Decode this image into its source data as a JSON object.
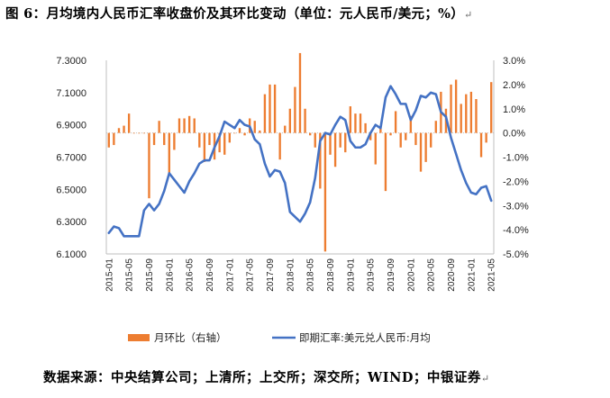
{
  "title": "图 6：月均境内人民币汇率收盘价及其环比变动（单位：元人民币/美元；%）",
  "return_mark": "↵",
  "source": "数据来源：中央结算公司；上清所；上交所；深交所；WIND；中银证券",
  "colors": {
    "bar": "#ED7D31",
    "line": "#4472C4",
    "axis": "#BFBFBF"
  },
  "chart_data": {
    "type": "bar+line",
    "title": "",
    "categories": [
      "2015-01",
      "2015-02",
      "2015-03",
      "2015-04",
      "2015-05",
      "2015-06",
      "2015-07",
      "2015-08",
      "2015-09",
      "2015-10",
      "2015-11",
      "2015-12",
      "2016-01",
      "2016-02",
      "2016-03",
      "2016-04",
      "2016-05",
      "2016-06",
      "2016-07",
      "2016-08",
      "2016-09",
      "2016-10",
      "2016-11",
      "2016-12",
      "2017-01",
      "2017-02",
      "2017-03",
      "2017-04",
      "2017-05",
      "2017-06",
      "2017-07",
      "2017-08",
      "2017-09",
      "2017-10",
      "2017-11",
      "2017-12",
      "2018-01",
      "2018-02",
      "2018-03",
      "2018-04",
      "2018-05",
      "2018-06",
      "2018-07",
      "2018-08",
      "2018-09",
      "2018-10",
      "2018-11",
      "2018-12",
      "2019-01",
      "2019-02",
      "2019-03",
      "2019-04",
      "2019-05",
      "2019-06",
      "2019-07",
      "2019-08",
      "2019-09",
      "2019-10",
      "2019-11",
      "2019-12",
      "2020-01",
      "2020-02",
      "2020-03",
      "2020-04",
      "2020-05",
      "2020-06",
      "2020-07",
      "2020-08",
      "2020-09",
      "2020-10",
      "2020-11",
      "2020-12",
      "2021-01",
      "2021-02",
      "2021-03",
      "2021-04",
      "2021-05"
    ],
    "x_tick_labels": [
      "2015-01",
      "2015-05",
      "2015-09",
      "2016-01",
      "2016-05",
      "2016-09",
      "2017-01",
      "2017-05",
      "2017-09",
      "2018-01",
      "2018-05",
      "2018-09",
      "2019-01",
      "2019-05",
      "2019-09",
      "2020-01",
      "2020-05",
      "2020-09",
      "2021-01",
      "2021-05"
    ],
    "series": [
      {
        "name": "月环比（右轴）",
        "type": "bar",
        "axis": "right",
        "values": [
          -0.6,
          -0.5,
          0.2,
          0.3,
          0.8,
          0.0,
          0.0,
          0.0,
          -2.7,
          -0.5,
          0.5,
          -0.5,
          -1.7,
          -0.7,
          0.6,
          0.6,
          0.7,
          0.6,
          -0.6,
          -1.2,
          -0.5,
          -1.1,
          -0.8,
          -0.9,
          -0.4,
          0.0,
          0.2,
          -0.1,
          0.6,
          0.5,
          0.1,
          1.6,
          2.0,
          2.0,
          -1.1,
          0.3,
          1.0,
          1.9,
          3.3,
          1.0,
          -0.1,
          -0.6,
          -2.3,
          -4.9,
          -0.9,
          -1.4,
          -0.6,
          -0.8,
          1.1,
          0.8,
          0.8,
          0.4,
          -0.3,
          -1.3,
          0.2,
          -2.4,
          -0.1,
          0.9,
          -0.6,
          -0.3,
          0.7,
          -0.5,
          -1.6,
          -1.2,
          -0.6,
          0.5,
          1.7,
          1.0,
          2.0,
          2.2,
          1.2,
          1.6,
          1.7,
          1.4,
          -1.0,
          -0.4,
          2.1
        ]
      },
      {
        "name": "即期汇率:美元兑人民币:月均",
        "type": "line",
        "axis": "left",
        "values": [
          6.23,
          6.27,
          6.26,
          6.21,
          6.21,
          6.21,
          6.21,
          6.37,
          6.41,
          6.37,
          6.41,
          6.49,
          6.6,
          6.56,
          6.52,
          6.48,
          6.55,
          6.6,
          6.66,
          6.68,
          6.68,
          6.76,
          6.83,
          6.92,
          6.9,
          6.88,
          6.93,
          6.9,
          6.89,
          6.81,
          6.78,
          6.66,
          6.58,
          6.62,
          6.61,
          6.54,
          6.36,
          6.33,
          6.3,
          6.35,
          6.42,
          6.57,
          6.8,
          6.85,
          6.84,
          6.9,
          6.95,
          6.93,
          6.8,
          6.76,
          6.76,
          6.78,
          6.85,
          6.9,
          6.88,
          7.07,
          7.14,
          7.09,
          7.03,
          7.03,
          6.93,
          6.99,
          7.08,
          7.07,
          7.1,
          7.09,
          6.98,
          6.95,
          6.82,
          6.72,
          6.62,
          6.54,
          6.48,
          6.47,
          6.51,
          6.52,
          6.43
        ]
      }
    ],
    "y_left": {
      "ticks": [
        "6.1000",
        "6.3000",
        "6.5000",
        "6.7000",
        "6.9000",
        "7.1000",
        "7.3000"
      ],
      "range": [
        6.1,
        7.3
      ]
    },
    "y_right": {
      "ticks": [
        "-5.0%",
        "-4.0%",
        "-3.0%",
        "-2.0%",
        "-1.0%",
        "0.0%",
        "1.0%",
        "2.0%",
        "3.0%"
      ],
      "range": [
        -5,
        3
      ]
    },
    "legend": {
      "position": "bottom"
    },
    "grid": false
  }
}
